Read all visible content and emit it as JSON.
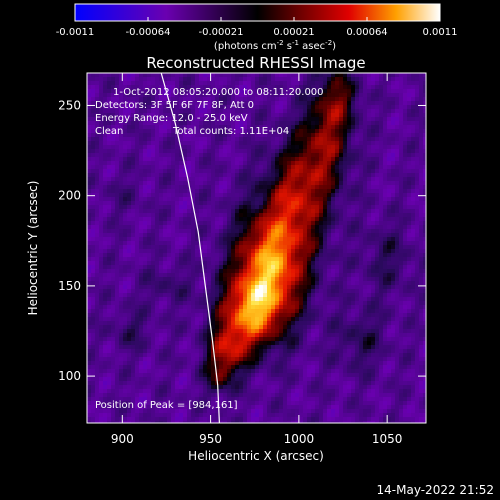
{
  "chart_data": {
    "type": "heatmap",
    "title": "Reconstructed RHESSI Image",
    "xlabel": "Heliocentric X (arcsec)",
    "ylabel": "Heliocentric Y (arcsec)",
    "xlim": [
      880,
      1072
    ],
    "ylim": [
      74,
      268
    ],
    "xticks": [
      {
        "value": 900,
        "label": "900"
      },
      {
        "value": 950,
        "label": "950"
      },
      {
        "value": 1000,
        "label": "1000"
      },
      {
        "value": 1050,
        "label": "1050"
      }
    ],
    "yticks": [
      {
        "value": 100,
        "label": "100"
      },
      {
        "value": 150,
        "label": "150"
      },
      {
        "value": 200,
        "label": "200"
      },
      {
        "value": 250,
        "label": "250"
      }
    ],
    "colorbar": {
      "range": [
        -0.0011,
        0.0011
      ],
      "ticks": [
        "-0.0011",
        "-0.00064",
        "-0.00021",
        "0.00021",
        "0.00064",
        "0.0011"
      ],
      "unit_main": "(photons cm",
      "unit_sup1": "-2",
      "unit_mid1": " s",
      "unit_sup2": "-1",
      "unit_mid2": " asec",
      "unit_sup3": "-2",
      "unit_end": ")"
    },
    "annotations": {
      "time": "1-Oct-2012 08:05:20.000 to 08:11:20.000",
      "detectors": "Detectors: 3F 5F 6F 7F 8F, Att 0",
      "energy": "Energy Range: 12.0 - 25.0 keV",
      "clean": "Clean",
      "counts": "Total counts: 1.11E+04",
      "peak": "Position of Peak = [984,161]"
    },
    "peak": [
      984,
      161
    ],
    "solar_limb": [
      [
        922,
        268
      ],
      [
        930,
        240
      ],
      [
        937,
        210
      ],
      [
        943,
        180
      ],
      [
        947,
        150
      ],
      [
        951,
        120
      ],
      [
        954,
        95
      ],
      [
        955,
        74
      ]
    ],
    "emission_blobs": [
      {
        "x": 984,
        "y": 161,
        "sx": 14,
        "sy": 22,
        "amp": 1.0
      },
      {
        "x": 972,
        "y": 135,
        "sx": 12,
        "sy": 14,
        "amp": 0.75
      },
      {
        "x": 960,
        "y": 115,
        "sx": 8,
        "sy": 10,
        "amp": 0.55
      },
      {
        "x": 1000,
        "y": 200,
        "sx": 12,
        "sy": 20,
        "amp": 0.6
      },
      {
        "x": 1015,
        "y": 230,
        "sx": 10,
        "sy": 18,
        "amp": 0.5
      },
      {
        "x": 1022,
        "y": 255,
        "sx": 8,
        "sy": 12,
        "amp": 0.4
      },
      {
        "x": 955,
        "y": 100,
        "sx": 6,
        "sy": 8,
        "amp": 0.35
      },
      {
        "x": 1035,
        "y": 120,
        "sx": 10,
        "sy": 12,
        "amp": 0.22
      },
      {
        "x": 1050,
        "y": 165,
        "sx": 10,
        "sy": 14,
        "amp": 0.2
      },
      {
        "x": 905,
        "y": 125,
        "sx": 8,
        "sy": 8,
        "amp": 0.18
      },
      {
        "x": 925,
        "y": 150,
        "sx": 10,
        "sy": 8,
        "amp": 0.15
      },
      {
        "x": 900,
        "y": 200,
        "sx": 8,
        "sy": 8,
        "amp": 0.1
      }
    ]
  },
  "timestamp": "14-May-2022 21:52"
}
